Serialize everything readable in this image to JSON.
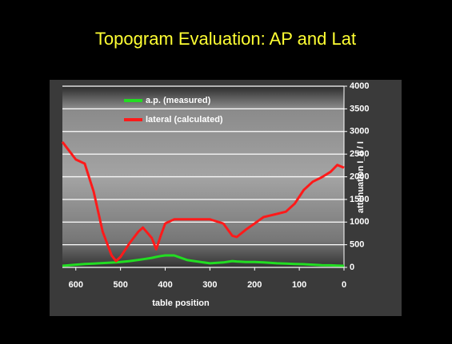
{
  "chart_data": {
    "type": "line",
    "title": "Topogram Evaluation: AP and Lat",
    "x_label": "table position",
    "y_label": "attenuation I_0 / I",
    "x": [
      630,
      600,
      580,
      560,
      540,
      520,
      510,
      500,
      480,
      460,
      450,
      430,
      420,
      410,
      400,
      380,
      350,
      300,
      270,
      250,
      240,
      220,
      200,
      180,
      150,
      130,
      110,
      90,
      70,
      50,
      30,
      15,
      0
    ],
    "series": [
      {
        "name": "a.p. (measured)",
        "color": "#22dd22",
        "values": [
          35,
          60,
          75,
          85,
          95,
          105,
          110,
          120,
          140,
          165,
          180,
          210,
          230,
          250,
          265,
          265,
          160,
          90,
          110,
          140,
          130,
          120,
          120,
          110,
          90,
          85,
          75,
          70,
          60,
          50,
          45,
          40,
          35
        ]
      },
      {
        "name": "lateral (calculated)",
        "color": "#ff1a1a",
        "values": [
          2770,
          2380,
          2290,
          1670,
          790,
          265,
          140,
          230,
          530,
          790,
          880,
          650,
          400,
          700,
          970,
          1060,
          1060,
          1060,
          970,
          700,
          670,
          830,
          970,
          1110,
          1180,
          1230,
          1410,
          1710,
          1890,
          1990,
          2110,
          2260,
          2200
        ]
      }
    ],
    "xlim": [
      630,
      0
    ],
    "xticks": [
      600,
      500,
      400,
      300,
      200,
      100,
      0
    ],
    "ylim": [
      0,
      4000
    ],
    "yticks": [
      0,
      500,
      1000,
      1500,
      2000,
      2500,
      3000,
      3500,
      4000
    ],
    "grid": true,
    "legend": "top-left"
  }
}
